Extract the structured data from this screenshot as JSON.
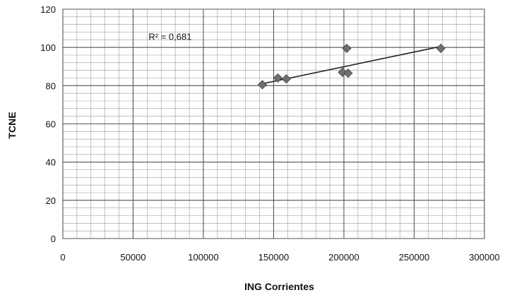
{
  "chart_data": {
    "type": "scatter",
    "title": "",
    "xlabel": "ING Corrientes",
    "ylabel": "TCNE",
    "xlim": [
      0,
      300000
    ],
    "ylim": [
      0,
      120
    ],
    "x_ticks": [
      0,
      50000,
      100000,
      150000,
      200000,
      250000,
      300000
    ],
    "y_ticks": [
      0,
      20,
      40,
      60,
      80,
      100,
      120
    ],
    "x_tick_labels": [
      "0",
      "50000",
      "100000",
      "150000",
      "200000",
      "250000",
      "300000"
    ],
    "y_tick_labels": [
      "0",
      "20",
      "40",
      "60",
      "80",
      "100",
      "120"
    ],
    "grid": true,
    "legend": "none",
    "series": [
      {
        "points": [
          {
            "x": 142000,
            "y": 80.5
          },
          {
            "x": 153000,
            "y": 84
          },
          {
            "x": 159000,
            "y": 83.5
          },
          {
            "x": 199000,
            "y": 87
          },
          {
            "x": 202000,
            "y": 99.5
          },
          {
            "x": 203000,
            "y": 86.5
          },
          {
            "x": 269000,
            "y": 99.5
          }
        ],
        "marker_color": "#707070"
      }
    ],
    "trendline": {
      "type": "linear",
      "from": {
        "x": 142000,
        "y": 81
      },
      "to": {
        "x": 269000,
        "y": 100.5
      },
      "color": "#222222"
    },
    "annotations": [
      {
        "text": "R² = 0,681",
        "x": 61000,
        "y": 104
      }
    ]
  }
}
